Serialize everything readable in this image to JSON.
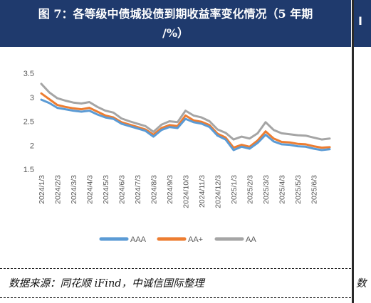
{
  "header": {
    "title_line1": "图 7：各等级中债城投债到期收益率变化情况（5 年期",
    "title_line2": "/%）"
  },
  "footer": {
    "source": "数据来源：同花顺 iFind，中诚信国际整理"
  },
  "right_panel": {
    "title_fragment": "I",
    "source_fragment": "数"
  },
  "colors": {
    "AAA": "#5b9bd5",
    "AA+": "#ed7d31",
    "AA": "#a5a5a5",
    "header_bg": "#1f3a6d"
  },
  "chart_data": {
    "type": "line",
    "title": "",
    "xlabel": "",
    "ylabel": "",
    "ylim": [
      1.5,
      3.5
    ],
    "yticks": [
      "1.5",
      "2",
      "2.5",
      "3",
      "3.5"
    ],
    "grid": false,
    "legend_position": "bottom",
    "x": [
      "2024/1/3",
      "2024/1/17",
      "2024/2/3",
      "2024/2/17",
      "2024/3/3",
      "2024/3/17",
      "2024/4/3",
      "2024/4/17",
      "2024/5/3",
      "2024/5/17",
      "2024/6/3",
      "2024/6/17",
      "2024/7/3",
      "2024/7/17",
      "2024/8/3",
      "2024/8/17",
      "2024/9/3",
      "2024/9/17",
      "2024/10/3",
      "2024/10/17",
      "2024/11/3",
      "2024/11/17",
      "2024/12/3",
      "2024/12/17",
      "2025/1/3",
      "2025/1/17",
      "2025/2/3",
      "2025/2/17",
      "2025/3/3",
      "2025/3/17",
      "2025/4/3",
      "2025/4/17",
      "2025/5/3",
      "2025/5/17",
      "2025/6/3",
      "2025/6/17",
      "2025/7/3"
    ],
    "xticks": [
      "2024/1/3",
      "2024/2/3",
      "2024/3/3",
      "2024/4/3",
      "2024/5/3",
      "2024/6/3",
      "2024/7/3",
      "2024/8/3",
      "2024/9/3",
      "2024/10/3",
      "2024/11/3",
      "2024/12/3",
      "2025/1/3",
      "2025/2/3",
      "2025/3/3",
      "2025/4/3",
      "2025/5/3",
      "2025/6/3"
    ],
    "series": [
      {
        "name": "AAA",
        "values": [
          2.95,
          2.88,
          2.78,
          2.75,
          2.72,
          2.7,
          2.72,
          2.64,
          2.58,
          2.55,
          2.45,
          2.4,
          2.35,
          2.3,
          2.18,
          2.32,
          2.38,
          2.36,
          2.55,
          2.48,
          2.45,
          2.38,
          2.2,
          2.12,
          1.9,
          1.97,
          1.93,
          2.05,
          2.22,
          2.08,
          2.02,
          2.01,
          1.98,
          1.97,
          1.93,
          1.9,
          1.92
        ]
      },
      {
        "name": "AA+",
        "values": [
          3.08,
          2.96,
          2.84,
          2.8,
          2.77,
          2.75,
          2.78,
          2.7,
          2.62,
          2.58,
          2.48,
          2.43,
          2.38,
          2.33,
          2.22,
          2.36,
          2.42,
          2.4,
          2.62,
          2.52,
          2.49,
          2.42,
          2.24,
          2.16,
          1.95,
          2.01,
          1.97,
          2.1,
          2.29,
          2.14,
          2.07,
          2.06,
          2.03,
          2.02,
          1.98,
          1.95,
          1.96
        ]
      },
      {
        "name": "AA",
        "values": [
          3.28,
          3.1,
          2.98,
          2.93,
          2.89,
          2.87,
          2.9,
          2.8,
          2.72,
          2.68,
          2.56,
          2.5,
          2.45,
          2.4,
          2.28,
          2.43,
          2.5,
          2.48,
          2.72,
          2.62,
          2.58,
          2.5,
          2.33,
          2.26,
          2.12,
          2.18,
          2.14,
          2.25,
          2.48,
          2.32,
          2.25,
          2.23,
          2.21,
          2.2,
          2.16,
          2.12,
          2.14
        ]
      }
    ]
  }
}
